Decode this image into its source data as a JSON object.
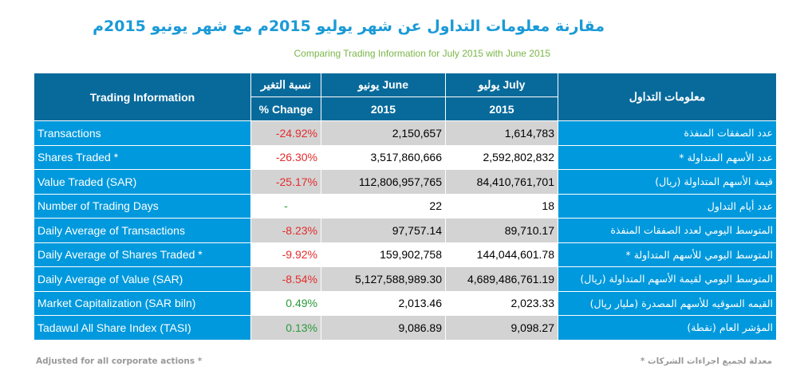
{
  "title_ar": "مقارنة معلومات التداول عن شهر يوليو 2015م مع شهر يونيو 2015م",
  "subtitle": "Comparing Trading Information for July 2015  with June 2015",
  "header": {
    "trading_info": "Trading Information",
    "change_ar": "نسبة التغير",
    "change_en": "% Change",
    "june": "يونيو  June",
    "june_year": "2015",
    "july": "يوليو   July",
    "july_year": "2015",
    "info_ar": "معلومات التداول"
  },
  "rows": [
    {
      "label": "Transactions",
      "change": "-24.92%",
      "june": "2,150,657",
      "july": "1,614,783",
      "label_ar": "عدد الصفقات المنفذة",
      "trend": "neg"
    },
    {
      "label": "Shares Traded *",
      "change": "-26.30%",
      "june": "3,517,860,666",
      "july": "2,592,802,832",
      "label_ar": "عدد الأسهم المتداولة *",
      "trend": "neg"
    },
    {
      "label": "Value Traded (SAR)",
      "change": "-25.17%",
      "june": "112,806,957,765",
      "july": "84,410,761,701",
      "label_ar": "قيمة الأسهم المتداولة (ريال)",
      "trend": "neg"
    },
    {
      "label": "Number of Trading Days",
      "change": "-",
      "june": "22",
      "july": "18",
      "label_ar": "عدد أيام التداول",
      "trend": "dash"
    },
    {
      "label": "Daily Average of Transactions",
      "change": "-8.23%",
      "june": "97,757.14",
      "july": "89,710.17",
      "label_ar": "المتوسط اليومي لعدد الصفقات المنفذة",
      "trend": "neg"
    },
    {
      "label": "Daily Average of Shares Traded *",
      "change": "-9.92%",
      "june": "159,902,758",
      "july": "144,044,601.78",
      "label_ar": "المتوسط اليومي للأسهم المتداولة *",
      "trend": "neg"
    },
    {
      "label": "Daily Average of Value (SAR)",
      "change": "-8.54%",
      "june": "5,127,588,989.30",
      "july": "4,689,486,761.19",
      "label_ar": "المتوسط اليومي لقيمة الأسهم المتداولة (ريال)",
      "trend": "neg"
    },
    {
      "label": "Market Capitalization (SAR biln)",
      "change": "0.49%",
      "june": "2,013.46",
      "july": "2,023.33",
      "label_ar": "القيمه السوقيه للأسهم المصدرة (مليار ريال)",
      "trend": "pos"
    },
    {
      "label": "Tadawul All Share Index (TASI)",
      "change": "0.13%",
      "june": "9,086.89",
      "july": "9,098.27",
      "label_ar": "المؤشر العام  (نقطة)",
      "trend": "pos"
    }
  ],
  "footnote_en": "Adjusted for all corporate actions *",
  "footnote_ar": "معدلة لجميع اجراءات الشركات *",
  "colors": {
    "header": "#086a9b",
    "label_bg": "#0099dd",
    "negative": "#e52b2b",
    "positive": "#2a9a3a"
  }
}
